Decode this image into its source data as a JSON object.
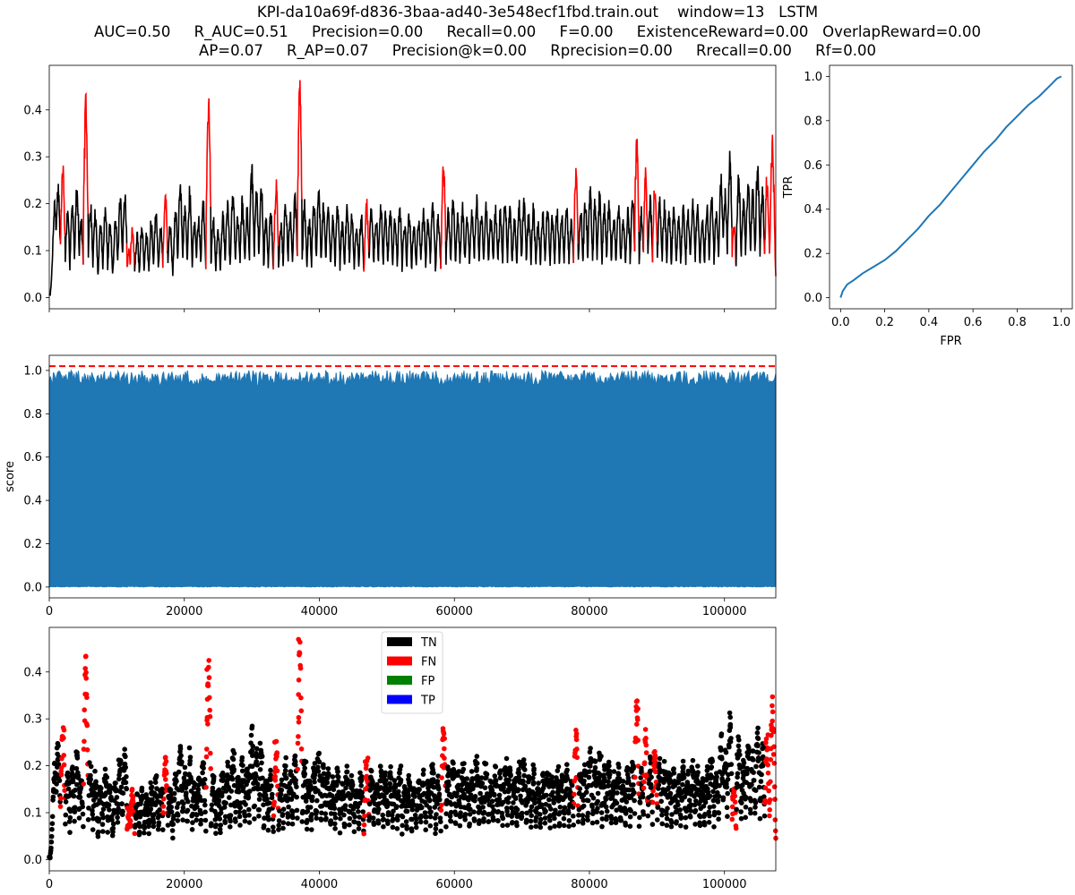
{
  "title_lines": [
    "KPI-da10a69f-d836-3baa-ad40-3e548ecf1fbd.train.out    window=13   LSTM",
    "AUC=0.50     R_AUC=0.51     Precision=0.00     Recall=0.00     F=0.00     ExistenceReward=0.00   OverlapReward=0.00",
    "AP=0.07     R_AP=0.07     Precision@k=0.00     Rprecision=0.00     Rrecall=0.00     Rf=0.00"
  ],
  "colors": {
    "normal": "#000000",
    "anomaly": "#ff0000",
    "score": "#1f77b4",
    "threshold": "#ff0000",
    "TN": "#000000",
    "FN": "#ff0000",
    "FP": "#008000",
    "TP": "#0000ff"
  },
  "chart_data": [
    {
      "id": "series",
      "type": "line",
      "xlim": [
        0,
        107600
      ],
      "ylim": [
        -0.024,
        0.495
      ],
      "yticks": [
        0.0,
        0.1,
        0.2,
        0.3,
        0.4
      ],
      "ytick_labels": [
        "0.0",
        "0.1",
        "0.2",
        "0.3",
        "0.4"
      ],
      "xticks": [
        0,
        20000,
        40000,
        60000,
        80000,
        100000
      ],
      "xlabel": "",
      "ylabel": "",
      "peaks": [
        [
          800,
          0.22,
          0
        ],
        [
          1300,
          0.26,
          0
        ],
        [
          2000,
          0.3,
          1
        ],
        [
          2700,
          0.19,
          0
        ],
        [
          3400,
          0.21,
          0
        ],
        [
          4100,
          0.25,
          0
        ],
        [
          4700,
          0.18,
          0
        ],
        [
          5400,
          0.44,
          1
        ],
        [
          6100,
          0.21,
          0
        ],
        [
          6800,
          0.19,
          0
        ],
        [
          7600,
          0.17,
          0
        ],
        [
          8300,
          0.2,
          0
        ],
        [
          9000,
          0.17,
          0
        ],
        [
          9800,
          0.18,
          0
        ],
        [
          10500,
          0.22,
          0
        ],
        [
          11200,
          0.24,
          0
        ],
        [
          11800,
          0.11,
          1
        ],
        [
          12300,
          0.16,
          1
        ],
        [
          13000,
          0.14,
          0
        ],
        [
          13700,
          0.16,
          0
        ],
        [
          14400,
          0.15,
          0
        ],
        [
          15100,
          0.17,
          0
        ],
        [
          15800,
          0.19,
          0
        ],
        [
          16500,
          0.16,
          0
        ],
        [
          17200,
          0.24,
          1
        ],
        [
          17900,
          0.16,
          0
        ],
        [
          18700,
          0.2,
          0
        ],
        [
          19400,
          0.26,
          0
        ],
        [
          20100,
          0.21,
          0
        ],
        [
          20800,
          0.24,
          0
        ],
        [
          21500,
          0.17,
          0
        ],
        [
          22100,
          0.18,
          0
        ],
        [
          22800,
          0.22,
          0
        ],
        [
          23600,
          0.47,
          1
        ],
        [
          24300,
          0.18,
          0
        ],
        [
          25000,
          0.15,
          0
        ],
        [
          25700,
          0.19,
          0
        ],
        [
          26400,
          0.21,
          0
        ],
        [
          27200,
          0.24,
          0
        ],
        [
          27900,
          0.19,
          0
        ],
        [
          28600,
          0.22,
          0
        ],
        [
          29300,
          0.2,
          0
        ],
        [
          30000,
          0.29,
          0
        ],
        [
          30700,
          0.24,
          0
        ],
        [
          31400,
          0.25,
          0
        ],
        [
          32100,
          0.18,
          0
        ],
        [
          32800,
          0.2,
          0
        ],
        [
          33600,
          0.26,
          1
        ],
        [
          34300,
          0.17,
          0
        ],
        [
          35000,
          0.22,
          0
        ],
        [
          35700,
          0.19,
          0
        ],
        [
          36400,
          0.23,
          0
        ],
        [
          37100,
          0.48,
          1
        ],
        [
          37800,
          0.21,
          0
        ],
        [
          38500,
          0.18,
          0
        ],
        [
          39200,
          0.22,
          0
        ],
        [
          39900,
          0.24,
          0
        ],
        [
          40600,
          0.21,
          0
        ],
        [
          41300,
          0.2,
          0
        ],
        [
          42000,
          0.18,
          0
        ],
        [
          42700,
          0.21,
          0
        ],
        [
          43400,
          0.17,
          0
        ],
        [
          44100,
          0.2,
          0
        ],
        [
          44800,
          0.19,
          0
        ],
        [
          45500,
          0.16,
          0
        ],
        [
          46200,
          0.19,
          0
        ],
        [
          47000,
          0.22,
          1
        ],
        [
          47700,
          0.2,
          0
        ],
        [
          48400,
          0.18,
          0
        ],
        [
          49100,
          0.21,
          0
        ],
        [
          49800,
          0.19,
          0
        ],
        [
          50500,
          0.2,
          0
        ],
        [
          51200,
          0.18,
          0
        ],
        [
          51900,
          0.21,
          0
        ],
        [
          52600,
          0.17,
          0
        ],
        [
          53300,
          0.19,
          0
        ],
        [
          54000,
          0.16,
          0
        ],
        [
          54700,
          0.18,
          0
        ],
        [
          55400,
          0.2,
          0
        ],
        [
          56100,
          0.18,
          0
        ],
        [
          56800,
          0.22,
          0
        ],
        [
          57600,
          0.19,
          0
        ],
        [
          58400,
          0.3,
          1
        ],
        [
          59100,
          0.2,
          0
        ],
        [
          59800,
          0.22,
          0
        ],
        [
          60500,
          0.19,
          0
        ],
        [
          61200,
          0.21,
          0
        ],
        [
          61900,
          0.18,
          0
        ],
        [
          62600,
          0.2,
          0
        ],
        [
          63300,
          0.22,
          0
        ],
        [
          64000,
          0.19,
          0
        ],
        [
          64700,
          0.21,
          0
        ],
        [
          65400,
          0.18,
          0
        ],
        [
          66100,
          0.2,
          0
        ],
        [
          66800,
          0.19,
          0
        ],
        [
          67500,
          0.22,
          0
        ],
        [
          68200,
          0.2,
          0
        ],
        [
          68900,
          0.18,
          0
        ],
        [
          69600,
          0.21,
          0
        ],
        [
          70300,
          0.22,
          0
        ],
        [
          71000,
          0.19,
          0
        ],
        [
          71700,
          0.2,
          0
        ],
        [
          72400,
          0.17,
          0
        ],
        [
          73100,
          0.19,
          0
        ],
        [
          73800,
          0.21,
          0
        ],
        [
          74500,
          0.18,
          0
        ],
        [
          75200,
          0.2,
          0
        ],
        [
          75900,
          0.19,
          0
        ],
        [
          76600,
          0.21,
          0
        ],
        [
          77300,
          0.18,
          0
        ],
        [
          78000,
          0.29,
          1
        ],
        [
          78700,
          0.2,
          0
        ],
        [
          79400,
          0.22,
          0
        ],
        [
          80100,
          0.24,
          0
        ],
        [
          80800,
          0.21,
          0
        ],
        [
          81500,
          0.23,
          0
        ],
        [
          82200,
          0.2,
          0
        ],
        [
          82900,
          0.22,
          0
        ],
        [
          83600,
          0.19,
          0
        ],
        [
          84300,
          0.21,
          0
        ],
        [
          85000,
          0.18,
          0
        ],
        [
          85700,
          0.2,
          0
        ],
        [
          86400,
          0.22,
          0
        ],
        [
          87000,
          0.35,
          1
        ],
        [
          87700,
          0.2,
          0
        ],
        [
          88300,
          0.28,
          1
        ],
        [
          89000,
          0.22,
          0
        ],
        [
          89700,
          0.26,
          1
        ],
        [
          90400,
          0.22,
          0
        ],
        [
          91100,
          0.21,
          0
        ],
        [
          91800,
          0.19,
          0
        ],
        [
          92500,
          0.2,
          0
        ],
        [
          93200,
          0.18,
          0
        ],
        [
          93900,
          0.21,
          0
        ],
        [
          94600,
          0.19,
          0
        ],
        [
          95300,
          0.22,
          0
        ],
        [
          96000,
          0.2,
          0
        ],
        [
          96700,
          0.18,
          0
        ],
        [
          97400,
          0.21,
          0
        ],
        [
          98100,
          0.24,
          0
        ],
        [
          98800,
          0.2,
          0
        ],
        [
          99500,
          0.27,
          0
        ],
        [
          100100,
          0.23,
          0
        ],
        [
          100800,
          0.32,
          0
        ],
        [
          101400,
          0.16,
          1
        ],
        [
          102100,
          0.28,
          0
        ],
        [
          102800,
          0.22,
          0
        ],
        [
          103500,
          0.26,
          0
        ],
        [
          104200,
          0.24,
          0
        ],
        [
          104900,
          0.3,
          0
        ],
        [
          105600,
          0.25,
          0
        ],
        [
          106300,
          0.27,
          1
        ],
        [
          107100,
          0.36,
          1
        ]
      ]
    },
    {
      "id": "score",
      "type": "area",
      "xlim": [
        0,
        107600
      ],
      "ylim": [
        -0.05,
        1.07
      ],
      "yticks": [
        0.0,
        0.2,
        0.4,
        0.6,
        0.8,
        1.0
      ],
      "ytick_labels": [
        "0.0",
        "0.2",
        "0.4",
        "0.6",
        "0.8",
        "1.0"
      ],
      "xticks": [
        0,
        20000,
        40000,
        60000,
        80000,
        100000
      ],
      "xtick_labels": [
        "0",
        "20000",
        "40000",
        "60000",
        "80000",
        "100000"
      ],
      "xlabel": "",
      "ylabel": "score",
      "score_min": 0.0,
      "score_max_band": [
        0.93,
        1.0
      ],
      "threshold": 1.02
    },
    {
      "id": "classification",
      "type": "scatter",
      "xlim": [
        0,
        107600
      ],
      "ylim": [
        -0.024,
        0.495
      ],
      "yticks": [
        0.0,
        0.1,
        0.2,
        0.3,
        0.4
      ],
      "ytick_labels": [
        "0.0",
        "0.1",
        "0.2",
        "0.3",
        "0.4"
      ],
      "xticks": [
        0,
        20000,
        40000,
        60000,
        80000,
        100000
      ],
      "xtick_labels": [
        "0",
        "20000",
        "40000",
        "60000",
        "80000",
        "100000"
      ],
      "xlabel": "",
      "ylabel": "",
      "legend": {
        "position": "top-center",
        "entries": [
          {
            "label": "TN",
            "color": "#000000"
          },
          {
            "label": "FN",
            "color": "#ff0000"
          },
          {
            "label": "FP",
            "color": "#008000"
          },
          {
            "label": "TP",
            "color": "#0000ff"
          }
        ]
      }
    },
    {
      "id": "roc",
      "type": "line",
      "xlim": [
        -0.05,
        1.05
      ],
      "ylim": [
        -0.05,
        1.05
      ],
      "xticks": [
        0.0,
        0.2,
        0.4,
        0.6,
        0.8,
        1.0
      ],
      "xtick_labels": [
        "0.0",
        "0.2",
        "0.4",
        "0.6",
        "0.8",
        "1.0"
      ],
      "yticks": [
        0.0,
        0.2,
        0.4,
        0.6,
        0.8,
        1.0
      ],
      "ytick_labels": [
        "0.0",
        "0.2",
        "0.4",
        "0.6",
        "0.8",
        "1.0"
      ],
      "xlabel": "FPR",
      "ylabel": "TPR",
      "x": [
        0.0,
        0.01,
        0.03,
        0.06,
        0.1,
        0.15,
        0.2,
        0.25,
        0.3,
        0.35,
        0.4,
        0.45,
        0.5,
        0.55,
        0.6,
        0.65,
        0.7,
        0.75,
        0.8,
        0.85,
        0.9,
        0.95,
        0.98,
        1.0
      ],
      "y": [
        0.0,
        0.03,
        0.06,
        0.08,
        0.11,
        0.14,
        0.17,
        0.21,
        0.26,
        0.31,
        0.37,
        0.42,
        0.48,
        0.54,
        0.6,
        0.66,
        0.71,
        0.77,
        0.82,
        0.87,
        0.91,
        0.96,
        0.99,
        1.0
      ]
    }
  ]
}
